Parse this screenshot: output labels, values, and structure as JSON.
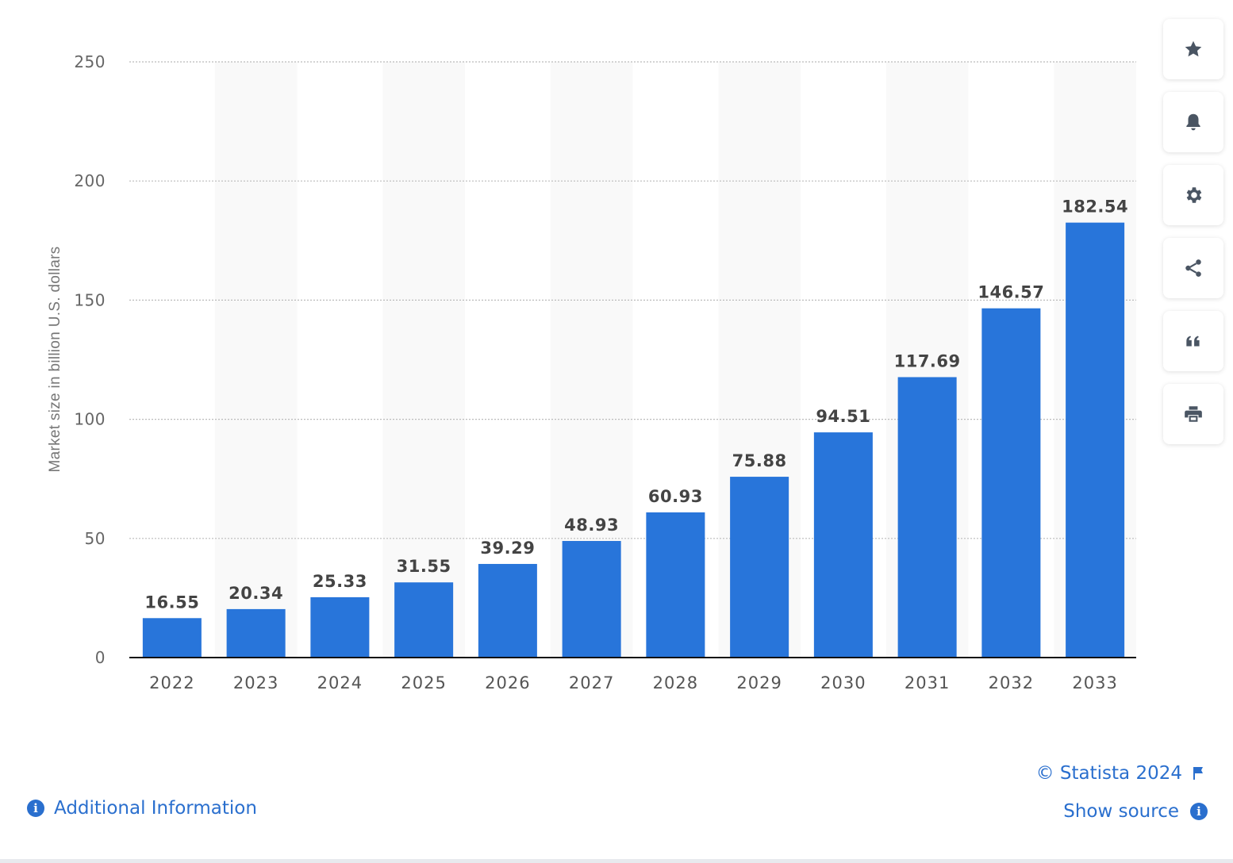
{
  "chart_data": {
    "type": "bar",
    "categories": [
      "2022",
      "2023",
      "2024",
      "2025",
      "2026",
      "2027",
      "2028",
      "2029",
      "2030",
      "2031",
      "2032",
      "2033"
    ],
    "values": [
      16.55,
      20.34,
      25.33,
      31.55,
      39.29,
      48.93,
      60.93,
      75.88,
      94.51,
      117.69,
      146.57,
      182.54
    ],
    "value_labels": [
      "16.55",
      "20.34",
      "25.33",
      "31.55",
      "39.29",
      "48.93",
      "60.93",
      "75.88",
      "94.51",
      "117.69",
      "146.57",
      "182.54"
    ],
    "ylabel": "Market size in billion U.S. dollars",
    "xlabel": "",
    "ylim": [
      0,
      250
    ],
    "yticks": [
      "0",
      "50",
      "100",
      "150",
      "200",
      "250"
    ],
    "grid": true,
    "bar_color": "#2875da"
  },
  "toolbar": [
    {
      "name": "favorite",
      "icon": "star-icon"
    },
    {
      "name": "notification",
      "icon": "bell-icon"
    },
    {
      "name": "settings",
      "icon": "gear-icon"
    },
    {
      "name": "share",
      "icon": "share-icon"
    },
    {
      "name": "cite",
      "icon": "quote-icon"
    },
    {
      "name": "print",
      "icon": "printer-icon"
    }
  ],
  "footer": {
    "additional_info": "Additional Information",
    "copyright": "© Statista 2024",
    "show_source": "Show source"
  },
  "colors": {
    "link": "#2a6fce",
    "icon": "#4a5563"
  }
}
